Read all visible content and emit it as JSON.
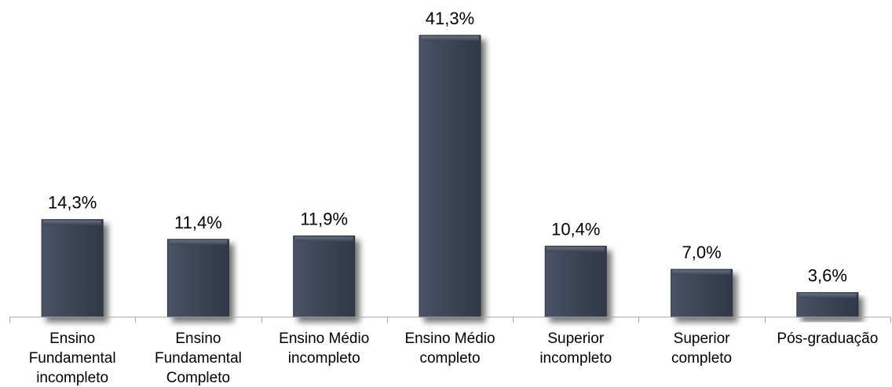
{
  "chart_data": {
    "type": "bar",
    "categories": [
      [
        "Ensino",
        "Fundamental",
        "incompleto"
      ],
      [
        "Ensino",
        "Fundamental",
        "Completo"
      ],
      [
        "Ensino Médio",
        "incompleto"
      ],
      [
        "Ensino Médio",
        "completo"
      ],
      [
        "Superior",
        "incompleto"
      ],
      [
        "Superior",
        "completo"
      ],
      [
        "Pós-graduação"
      ]
    ],
    "values": [
      14.3,
      11.4,
      11.9,
      41.3,
      10.4,
      7.0,
      3.6
    ],
    "data_labels": [
      "14,3%",
      "11,4%",
      "11,9%",
      "41,3%",
      "10,4%",
      "7,0%",
      "3,6%"
    ],
    "ylim": [
      0,
      41.3
    ],
    "grid": false,
    "legend": "none",
    "bar_color": "#3b4455",
    "bar_edge_color": "#5c6675",
    "axis_color": "#a6a6a6"
  }
}
